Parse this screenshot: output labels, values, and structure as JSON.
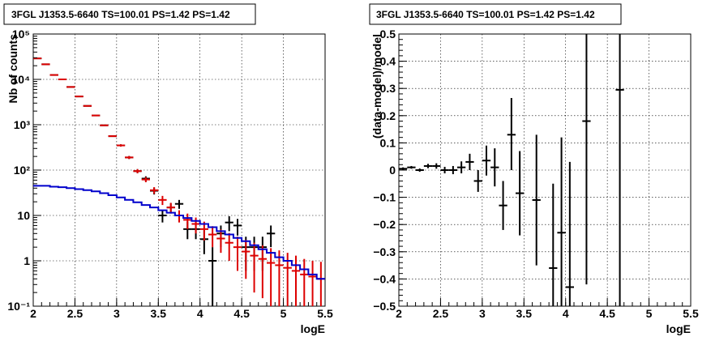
{
  "chart_data": [
    {
      "type": "scatter",
      "title": "3FGL J1353.5-6640 TS=100.01 PS=1.42 PS=1.42",
      "xlabel": "logE",
      "ylabel": "Nb of counts",
      "xlim": [
        2,
        5.5
      ],
      "ylim": [
        0.1,
        100000
      ],
      "y_scale": "log",
      "grid": true,
      "xticks": [
        "2",
        "2.5",
        "3",
        "3.5",
        "4",
        "4.5",
        "5",
        "5.5"
      ],
      "yticks": [
        "10⁻¹",
        "1",
        "10",
        "10²",
        "10³",
        "10⁴",
        "10⁵"
      ],
      "ytick_values": [
        0.1,
        1,
        10,
        100,
        1000,
        10000,
        100000
      ],
      "series": [
        {
          "color": "#000000",
          "kind": "data",
          "points": [
            {
              "x": 2.05,
              "y": 29000,
              "lo": 28700,
              "hi": 29300
            },
            {
              "x": 2.15,
              "y": 21500,
              "lo": 21300,
              "hi": 21700
            },
            {
              "x": 2.25,
              "y": 12500,
              "lo": 12400,
              "hi": 12600
            },
            {
              "x": 2.35,
              "y": 10000,
              "lo": 9900,
              "hi": 10100
            },
            {
              "x": 2.45,
              "y": 6800,
              "lo": 6720,
              "hi": 6880
            },
            {
              "x": 2.55,
              "y": 4200,
              "lo": 4140,
              "hi": 4260
            },
            {
              "x": 2.65,
              "y": 2600,
              "lo": 2550,
              "hi": 2650
            },
            {
              "x": 2.75,
              "y": 1600,
              "lo": 1560,
              "hi": 1640
            },
            {
              "x": 2.85,
              "y": 970,
              "lo": 940,
              "hi": 1000
            },
            {
              "x": 2.95,
              "y": 560,
              "lo": 540,
              "hi": 580
            },
            {
              "x": 3.05,
              "y": 350,
              "lo": 330,
              "hi": 370
            },
            {
              "x": 3.15,
              "y": 190,
              "lo": 176,
              "hi": 204
            },
            {
              "x": 3.25,
              "y": 95,
              "lo": 85,
              "hi": 105
            },
            {
              "x": 3.35,
              "y": 65,
              "lo": 57,
              "hi": 73
            },
            {
              "x": 3.45,
              "y": 35,
              "lo": 29,
              "hi": 41
            },
            {
              "x": 3.55,
              "y": 10,
              "lo": 7,
              "hi": 13
            },
            {
              "x": 3.65,
              "y": 15,
              "lo": 11.5,
              "hi": 18.5
            },
            {
              "x": 3.75,
              "y": 18,
              "lo": 14,
              "hi": 22
            },
            {
              "x": 3.85,
              "y": 5,
              "lo": 3,
              "hi": 7.3
            },
            {
              "x": 3.95,
              "y": 5,
              "lo": 3,
              "hi": 7.3
            },
            {
              "x": 4.05,
              "y": 3,
              "lo": 1.4,
              "hi": 4.7
            },
            {
              "x": 4.15,
              "y": 1,
              "lo": 0.1,
              "hi": 2
            },
            {
              "x": 4.25,
              "y": 4,
              "lo": 2,
              "hi": 6
            },
            {
              "x": 4.35,
              "y": 7,
              "lo": 4.5,
              "hi": 9.6
            },
            {
              "x": 4.45,
              "y": 6,
              "lo": 3.6,
              "hi": 8.4
            },
            {
              "x": 4.55,
              "y": 2,
              "lo": 0.6,
              "hi": 3.4
            },
            {
              "x": 4.65,
              "y": 2,
              "lo": 0.6,
              "hi": 3.4
            },
            {
              "x": 4.75,
              "y": 2,
              "lo": 0.6,
              "hi": 3.4
            },
            {
              "x": 4.85,
              "y": 4,
              "lo": 2,
              "hi": 6
            }
          ]
        },
        {
          "color": "#dd0000",
          "kind": "model",
          "points": [
            {
              "x": 2.05,
              "y": 29000,
              "lo": 28700,
              "hi": 29300
            },
            {
              "x": 2.15,
              "y": 21500,
              "lo": 21300,
              "hi": 21700
            },
            {
              "x": 2.25,
              "y": 12500,
              "lo": 12400,
              "hi": 12600
            },
            {
              "x": 2.35,
              "y": 10000,
              "lo": 9900,
              "hi": 10100
            },
            {
              "x": 2.45,
              "y": 6800,
              "lo": 6720,
              "hi": 6880
            },
            {
              "x": 2.55,
              "y": 4200,
              "lo": 4140,
              "hi": 4260
            },
            {
              "x": 2.65,
              "y": 2600,
              "lo": 2550,
              "hi": 2650
            },
            {
              "x": 2.75,
              "y": 1600,
              "lo": 1560,
              "hi": 1640
            },
            {
              "x": 2.85,
              "y": 970,
              "lo": 940,
              "hi": 1000
            },
            {
              "x": 2.95,
              "y": 560,
              "lo": 540,
              "hi": 580
            },
            {
              "x": 3.05,
              "y": 350,
              "lo": 330,
              "hi": 370
            },
            {
              "x": 3.15,
              "y": 190,
              "lo": 176,
              "hi": 204
            },
            {
              "x": 3.25,
              "y": 95,
              "lo": 85,
              "hi": 105
            },
            {
              "x": 3.35,
              "y": 62,
              "lo": 54,
              "hi": 70
            },
            {
              "x": 3.45,
              "y": 36,
              "lo": 30,
              "hi": 42
            },
            {
              "x": 3.55,
              "y": 22,
              "lo": 17,
              "hi": 27
            },
            {
              "x": 3.65,
              "y": 15,
              "lo": 11,
              "hi": 19
            },
            {
              "x": 3.75,
              "y": 10,
              "lo": 7,
              "hi": 13
            },
            {
              "x": 3.85,
              "y": 8,
              "lo": 5,
              "hi": 11
            },
            {
              "x": 3.95,
              "y": 6.5,
              "lo": 4,
              "hi": 9
            },
            {
              "x": 4.05,
              "y": 5,
              "lo": 2.8,
              "hi": 7.3
            },
            {
              "x": 4.15,
              "y": 3.8,
              "lo": 2,
              "hi": 5.8
            },
            {
              "x": 4.25,
              "y": 3.1,
              "lo": 1.5,
              "hi": 4.9
            },
            {
              "x": 4.35,
              "y": 2.5,
              "lo": 1,
              "hi": 4.1
            },
            {
              "x": 4.45,
              "y": 2,
              "lo": 0.6,
              "hi": 3.4
            },
            {
              "x": 4.55,
              "y": 1.6,
              "lo": 0.4,
              "hi": 2.9
            },
            {
              "x": 4.65,
              "y": 1.3,
              "lo": 0.2,
              "hi": 2.5
            },
            {
              "x": 4.75,
              "y": 1.1,
              "lo": 0.15,
              "hi": 2.2
            },
            {
              "x": 4.85,
              "y": 0.9,
              "lo": 0.1,
              "hi": 1.9
            },
            {
              "x": 4.95,
              "y": 0.8,
              "lo": 0.1,
              "hi": 1.7
            },
            {
              "x": 5.05,
              "y": 0.7,
              "lo": 0.1,
              "hi": 1.5
            },
            {
              "x": 5.15,
              "y": 0.6,
              "lo": 0.1,
              "hi": 1.3
            },
            {
              "x": 5.25,
              "y": 0.5,
              "lo": 0.1,
              "hi": 1.1
            },
            {
              "x": 5.35,
              "y": 0.45,
              "lo": 0.1,
              "hi": 1.0
            },
            {
              "x": 5.45,
              "y": 0.4,
              "lo": 0.1,
              "hi": 0.95
            }
          ]
        },
        {
          "color": "#0000cc",
          "kind": "step",
          "edges": [
            2.0,
            2.1,
            2.2,
            2.3,
            2.4,
            2.5,
            2.6,
            2.7,
            2.8,
            2.9,
            3.0,
            3.1,
            3.2,
            3.3,
            3.4,
            3.5,
            3.6,
            3.7,
            3.8,
            3.9,
            4.0,
            4.1,
            4.2,
            4.3,
            4.4,
            4.5,
            4.6,
            4.7,
            4.8,
            4.9,
            5.0,
            5.1,
            5.2,
            5.3,
            5.4,
            5.5
          ],
          "values": [
            45,
            45,
            43,
            42,
            40,
            38,
            36,
            34,
            31,
            28,
            25,
            22,
            19.5,
            17,
            15,
            13,
            11.5,
            10,
            8.8,
            7.6,
            6.5,
            5.5,
            4.5,
            3.8,
            3.2,
            2.7,
            2.2,
            1.8,
            1.5,
            1.2,
            1.0,
            0.8,
            0.65,
            0.5,
            0.4
          ]
        }
      ]
    },
    {
      "type": "scatter",
      "title": "3FGL J1353.5-6640 TS=100.01 PS=1.42 PS=1.42",
      "xlabel": "logE",
      "ylabel": "(data-model)/model",
      "xlim": [
        2,
        5.5
      ],
      "ylim": [
        -0.5,
        0.5
      ],
      "grid": true,
      "xticks": [
        "2",
        "2.5",
        "3",
        "3.5",
        "4",
        "4.5",
        "5",
        "5.5"
      ],
      "yticks": [
        "−0.5",
        "−0.4",
        "−0.3",
        "−0.2",
        "−0.1",
        "0",
        "0.1",
        "0.2",
        "0.3",
        "0.4",
        "0.5"
      ],
      "ytick_values": [
        -0.5,
        -0.4,
        -0.3,
        -0.2,
        -0.1,
        0,
        0.1,
        0.2,
        0.3,
        0.4,
        0.5
      ],
      "series": [
        {
          "color": "#000000",
          "kind": "data",
          "points": [
            {
              "x": 2.05,
              "y": 0.005,
              "lo": 0.0,
              "hi": 0.01
            },
            {
              "x": 2.15,
              "y": 0.01,
              "lo": 0.005,
              "hi": 0.015
            },
            {
              "x": 2.25,
              "y": 0.0,
              "lo": -0.006,
              "hi": 0.006
            },
            {
              "x": 2.35,
              "y": 0.015,
              "lo": 0.007,
              "hi": 0.023
            },
            {
              "x": 2.45,
              "y": 0.015,
              "lo": 0.005,
              "hi": 0.025
            },
            {
              "x": 2.55,
              "y": 0.0,
              "lo": -0.012,
              "hi": 0.012
            },
            {
              "x": 2.65,
              "y": 0.0,
              "lo": -0.015,
              "hi": 0.015
            },
            {
              "x": 2.75,
              "y": 0.01,
              "lo": -0.012,
              "hi": 0.032
            },
            {
              "x": 2.85,
              "y": 0.03,
              "lo": 0.0,
              "hi": 0.06
            },
            {
              "x": 2.95,
              "y": -0.04,
              "lo": -0.08,
              "hi": 0.0
            },
            {
              "x": 3.05,
              "y": 0.035,
              "lo": -0.02,
              "hi": 0.09
            },
            {
              "x": 3.15,
              "y": 0.01,
              "lo": -0.06,
              "hi": 0.08
            },
            {
              "x": 3.25,
              "y": -0.13,
              "lo": -0.22,
              "hi": -0.04
            },
            {
              "x": 3.35,
              "y": 0.13,
              "lo": 0.0,
              "hi": 0.265
            },
            {
              "x": 3.45,
              "y": -0.085,
              "lo": -0.24,
              "hi": 0.07
            },
            {
              "x": 3.65,
              "y": -0.11,
              "lo": -0.35,
              "hi": 0.13
            },
            {
              "x": 3.85,
              "y": -0.36,
              "lo": -0.5,
              "hi": -0.05
            },
            {
              "x": 3.95,
              "y": -0.23,
              "lo": -0.5,
              "hi": 0.12
            },
            {
              "x": 4.05,
              "y": -0.43,
              "lo": -0.5,
              "hi": 0.03
            },
            {
              "x": 4.25,
              "y": 0.18,
              "lo": -0.42,
              "hi": 0.5
            },
            {
              "x": 4.65,
              "y": 0.295,
              "lo": -0.5,
              "hi": 0.5
            }
          ]
        }
      ]
    }
  ]
}
